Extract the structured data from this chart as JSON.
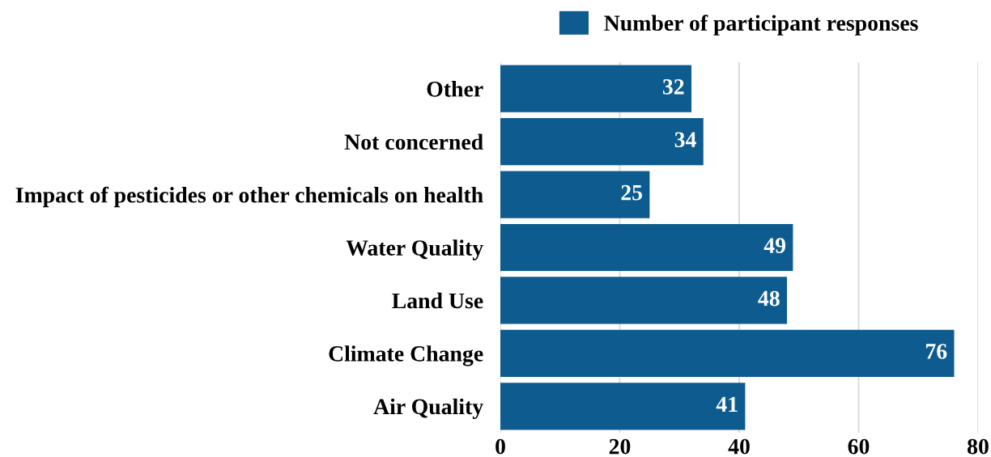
{
  "chart_data": {
    "type": "bar",
    "orientation": "horizontal",
    "categories": [
      "Other",
      "Not concerned",
      "Impact of pesticides or other chemicals on health",
      "Water Quality",
      "Land Use",
      "Climate Change",
      "Air Quality"
    ],
    "series": [
      {
        "name": "Number of participant responses",
        "color": "#0e5c8f",
        "values": [
          32,
          34,
          25,
          49,
          48,
          76,
          41
        ]
      }
    ],
    "xlim": [
      0,
      80
    ],
    "xticks": [
      0,
      20,
      40,
      60,
      80
    ],
    "grid": "x",
    "legend": "top",
    "data_labels": true
  }
}
